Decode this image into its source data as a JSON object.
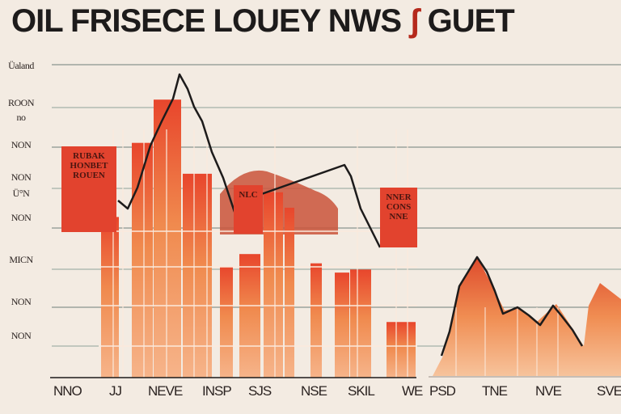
{
  "chart_data": {
    "type": "bar",
    "title": {
      "main": "OIL FRISECE LOUEY NWS",
      "accent": "ʃ",
      "tail": "GUET"
    },
    "y_tick_labels": [
      "Üaland",
      "ROON",
      "no",
      "NON",
      "NON",
      "Ü°N",
      "NON",
      "MICN",
      "NON",
      "NON"
    ],
    "x_tick_labels": [
      "NNO",
      "JJ",
      "NEVE",
      "INSP",
      "SJS",
      "NSE",
      "SKIL",
      "WE",
      "PSD",
      "TNE",
      "NVE",
      "SVE"
    ],
    "annotations": [
      {
        "lines": [
          "RUBAK",
          "HONBET",
          "ROUEN"
        ]
      },
      {
        "lines": [
          "NLC"
        ]
      },
      {
        "lines": [
          "NNER",
          "CONS",
          "NNE"
        ]
      }
    ],
    "series": [
      {
        "name": "bars",
        "values": [
          52,
          76,
          90,
          66,
          36,
          40,
          60,
          55,
          37,
          34,
          35,
          18
        ]
      },
      {
        "name": "line",
        "values": [
          48,
          45,
          87,
          83,
          66,
          43,
          54,
          49,
          27,
          21,
          15,
          9
        ]
      }
    ],
    "ylim": [
      0,
      100
    ],
    "colors": {
      "bar_top": "#e8462c",
      "bar_bottom": "#f6b48a",
      "line": "#1d1b1b",
      "accent": "#b5291c",
      "grid": "#8a9a94"
    }
  }
}
